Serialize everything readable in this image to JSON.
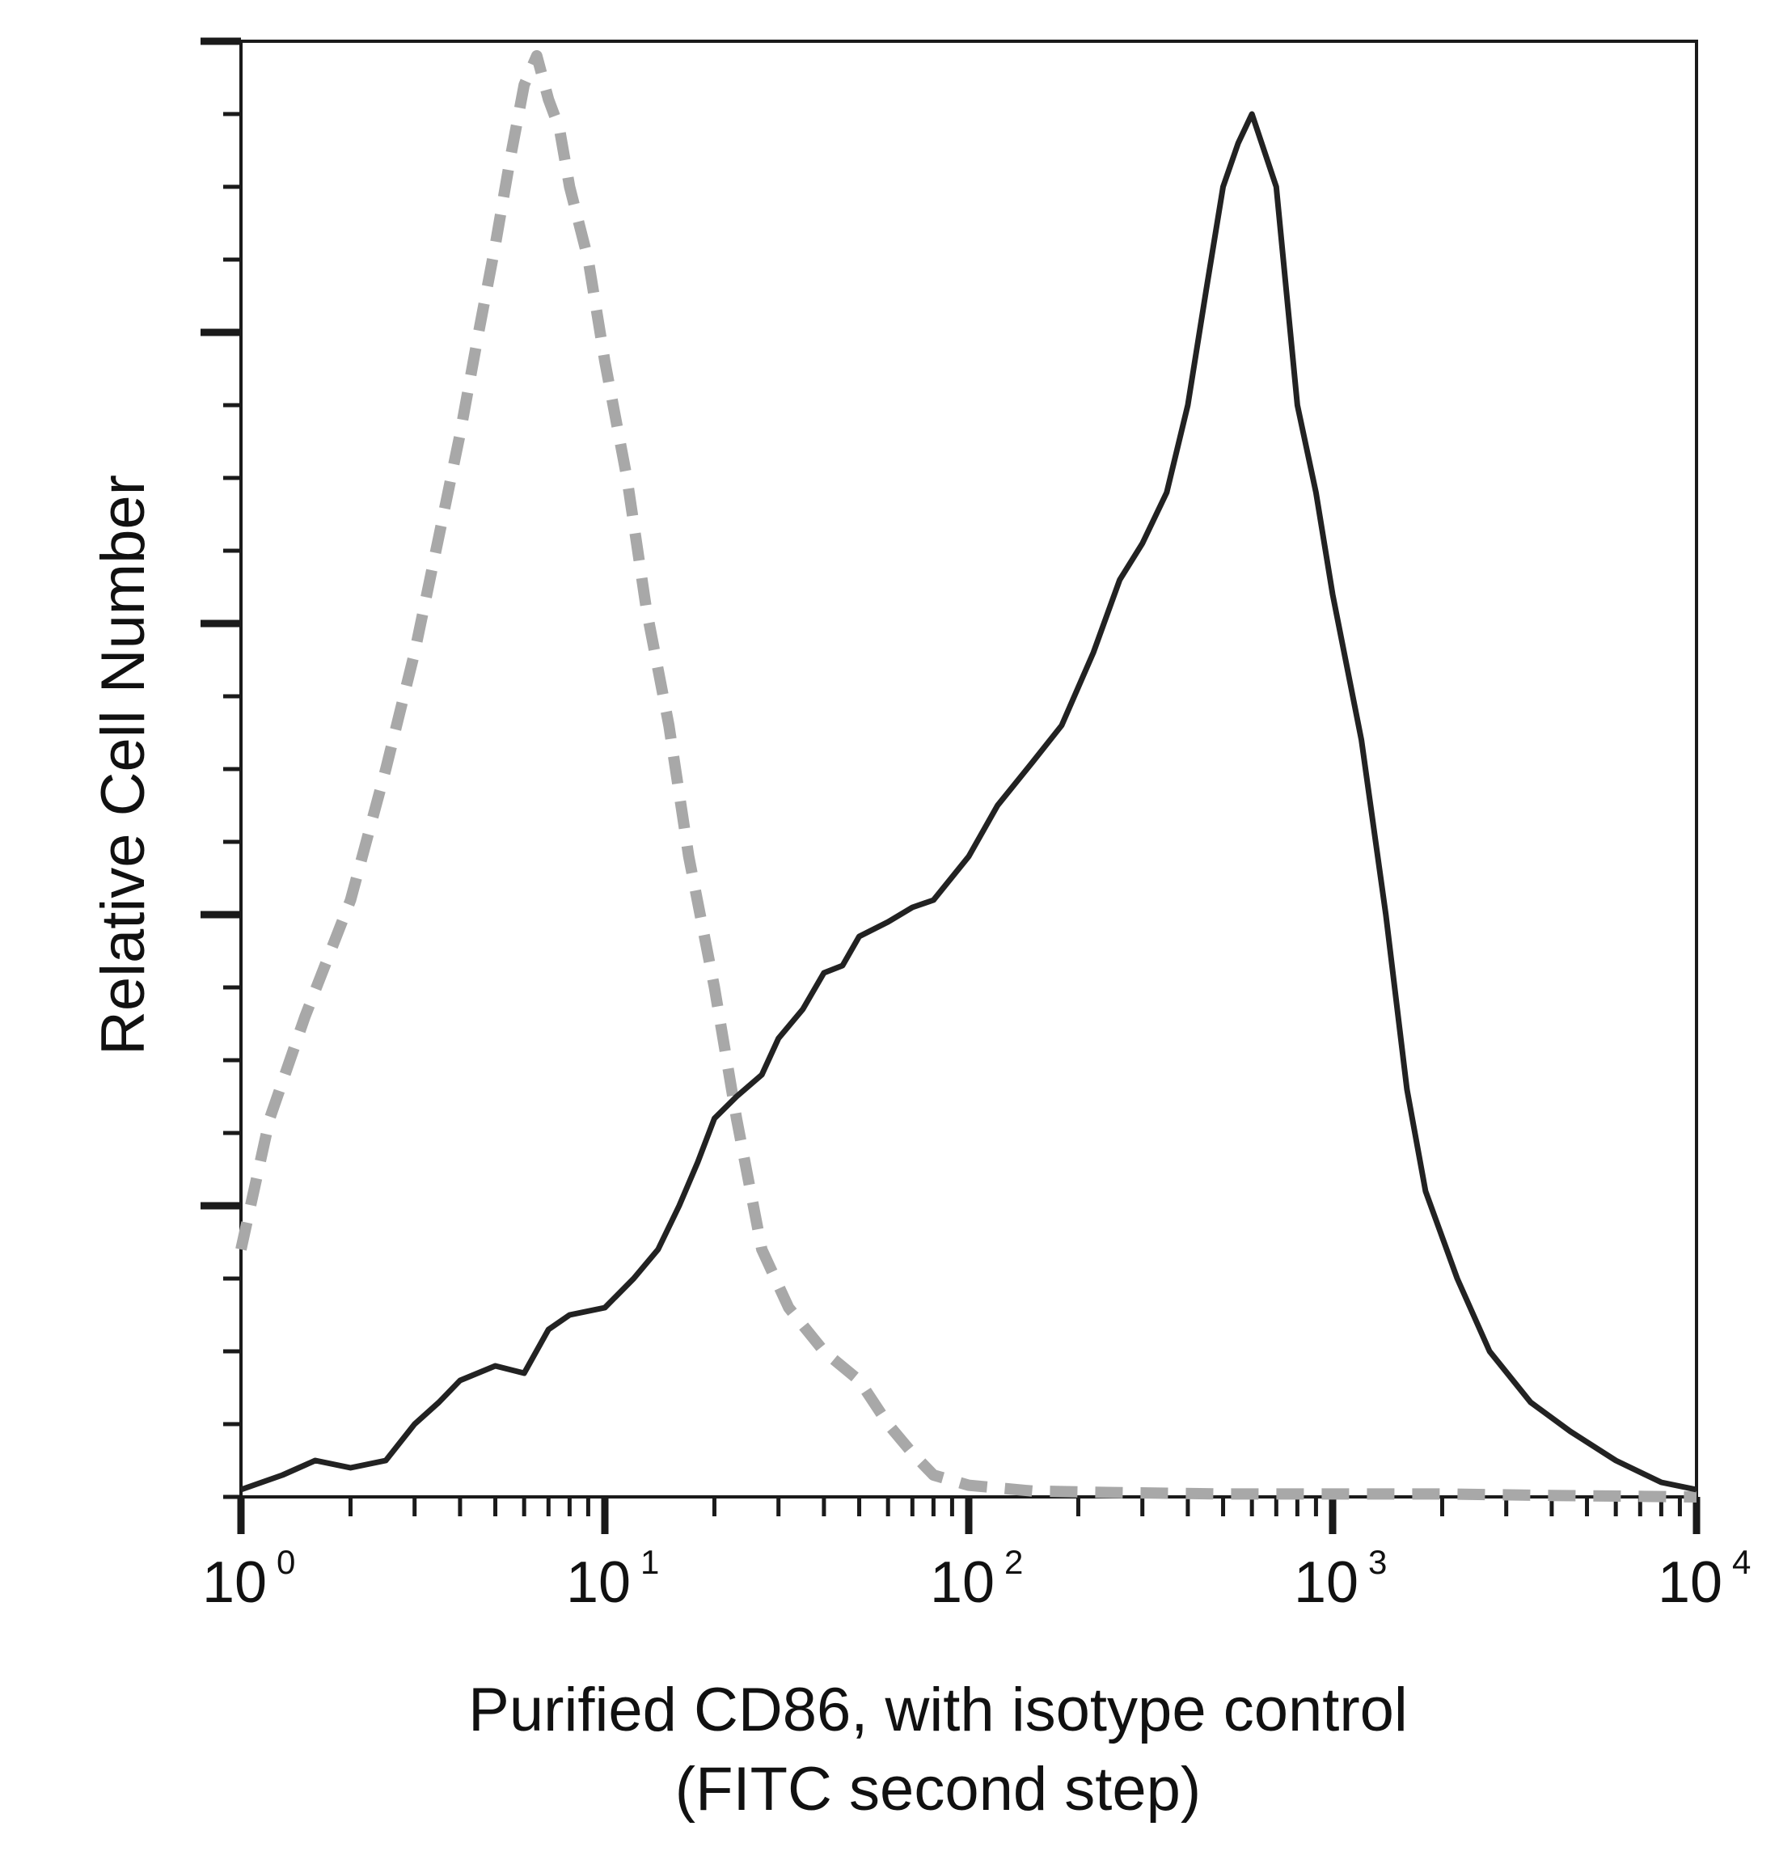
{
  "chart_data": {
    "type": "line",
    "xlabel_line1": "Purified CD86, with isotype control",
    "xlabel_line2": "(FITC second step)",
    "ylabel": "Relative Cell Number",
    "x_scale": "log",
    "xlim": [
      1,
      10000
    ],
    "ylim": [
      0,
      100
    ],
    "x_ticks": [
      {
        "base": "10",
        "exp": "0",
        "value": 1
      },
      {
        "base": "10",
        "exp": "1",
        "value": 10
      },
      {
        "base": "10",
        "exp": "2",
        "value": 100
      },
      {
        "base": "10",
        "exp": "3",
        "value": 1000
      },
      {
        "base": "10",
        "exp": "4",
        "value": 10000
      }
    ],
    "grid": false,
    "legend": "none",
    "series": [
      {
        "style": "dashed",
        "color": "#a8a8a8",
        "x": [
          1.0,
          1.2,
          1.5,
          2.0,
          2.5,
          3.0,
          3.5,
          4.0,
          4.5,
          5.0,
          5.5,
          6.0,
          6.5,
          7.0,
          7.5,
          8.0,
          9.0,
          10.0,
          11.5,
          13.0,
          15.0,
          17.0,
          20.0,
          23.0,
          27.0,
          32.0,
          40.0,
          50.0,
          60.0,
          70.0,
          80.0,
          100.0,
          150.0,
          250.0,
          500.0,
          1000.0,
          2000.0,
          4000.0,
          10000.0
        ],
        "y": [
          17,
          26,
          33,
          41,
          50,
          58,
          66,
          73,
          80,
          86,
          92,
          97,
          99,
          96,
          94,
          90,
          85,
          78,
          70,
          61,
          53,
          44,
          35,
          26,
          17,
          13,
          10,
          8,
          5,
          3,
          1.5,
          0.8,
          0.4,
          0.3,
          0.2,
          0.2,
          0.2,
          0.1,
          0
        ]
      },
      {
        "style": "solid",
        "color": "#222222",
        "x": [
          1.0,
          1.3,
          1.6,
          2.0,
          2.5,
          3.0,
          3.5,
          4.0,
          5.0,
          6.0,
          7.0,
          8.0,
          10.0,
          12.0,
          14.0,
          16.0,
          18.0,
          20.0,
          23.0,
          27.0,
          30.0,
          35.0,
          40.0,
          45.0,
          50.0,
          60.0,
          70.0,
          80.0,
          100.0,
          120.0,
          150.0,
          180.0,
          220.0,
          260.0,
          300.0,
          350.0,
          400.0,
          450.0,
          500.0,
          550.0,
          600.0,
          700.0,
          800.0,
          900.0,
          1000.0,
          1200.0,
          1400.0,
          1600.0,
          1800.0,
          2200.0,
          2700.0,
          3500.0,
          4500.0,
          6000.0,
          8000.0,
          10000.0
        ],
        "y": [
          0.5,
          1.5,
          2.5,
          2.0,
          2.5,
          5.0,
          6.5,
          8.0,
          9.0,
          8.5,
          11.5,
          12.5,
          13.0,
          15.0,
          17.0,
          20.0,
          23.0,
          26.0,
          27.5,
          29.0,
          31.5,
          33.5,
          36.0,
          36.5,
          38.5,
          39.5,
          40.5,
          41.0,
          44.0,
          47.5,
          50.5,
          53.0,
          58.0,
          63.0,
          65.5,
          69.0,
          75.0,
          83.0,
          90.0,
          93.0,
          95.0,
          90.0,
          75.0,
          69.0,
          62.0,
          52.0,
          40.0,
          28.0,
          21.0,
          15.0,
          10.0,
          6.5,
          4.5,
          2.5,
          1.0,
          0.5
        ]
      }
    ]
  }
}
